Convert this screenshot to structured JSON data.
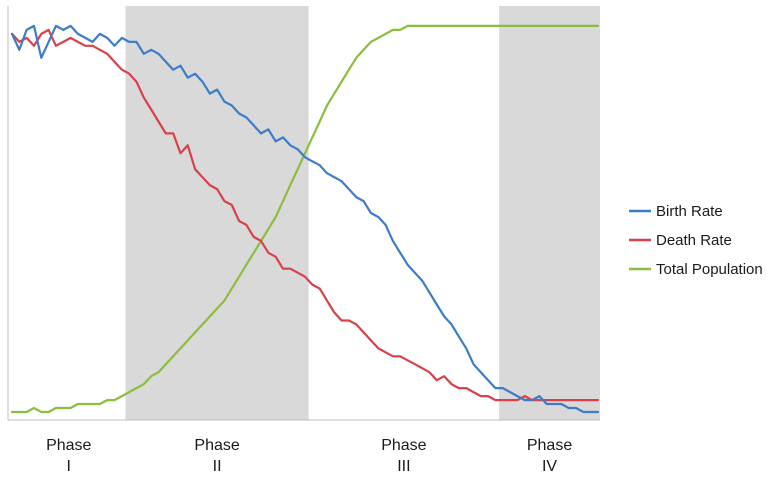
{
  "chart_data": {
    "type": "line",
    "title": "",
    "xlabel": "",
    "ylabel": "",
    "ylim": [
      0,
      100
    ],
    "grid": false,
    "legend_position": "right",
    "x": [
      0,
      1,
      2,
      3,
      4,
      5,
      6,
      7,
      8,
      9,
      10,
      11,
      12,
      13,
      14,
      15,
      16,
      17,
      18,
      19,
      20,
      21,
      22,
      23,
      24,
      25,
      26,
      27,
      28,
      29,
      30,
      31,
      32,
      33,
      34,
      35,
      36,
      37,
      38,
      39,
      40,
      41,
      42,
      43,
      44,
      45,
      46,
      47,
      48,
      49,
      50,
      51,
      52,
      53,
      54,
      55,
      56,
      57,
      58,
      59,
      60,
      61,
      62,
      63,
      64,
      65,
      66,
      67,
      68,
      69,
      70,
      71,
      72,
      73,
      74,
      75,
      76,
      77,
      78,
      79,
      80
    ],
    "phases": [
      {
        "name": "Phase I",
        "line1": "Phase",
        "line2": "I",
        "shaded": false,
        "x_start": 0,
        "x_end": 15.5
      },
      {
        "name": "Phase II",
        "line1": "Phase",
        "line2": "II",
        "shaded": true,
        "x_start": 15.5,
        "x_end": 40.5
      },
      {
        "name": "Phase III",
        "line1": "Phase",
        "line2": "III",
        "shaded": false,
        "x_start": 40.5,
        "x_end": 66.5
      },
      {
        "name": "Phase IV",
        "line1": "Phase",
        "line2": "IV",
        "shaded": true,
        "x_start": 66.5,
        "x_end": 81
      }
    ],
    "series": [
      {
        "name": "Birth Rate",
        "color": "#3d7cc9",
        "values": [
          95,
          91,
          96,
          97,
          89,
          93,
          97,
          96,
          97,
          95,
          94,
          93,
          95,
          94,
          92,
          94,
          93,
          93,
          90,
          91,
          90,
          88,
          86,
          87,
          84,
          85,
          83,
          80,
          81,
          78,
          77,
          75,
          74,
          72,
          70,
          71,
          68,
          69,
          67,
          66,
          64,
          63,
          62,
          60,
          59,
          58,
          56,
          54,
          53,
          50,
          49,
          47,
          43,
          40,
          37,
          35,
          33,
          30,
          27,
          24,
          22,
          19,
          16,
          12,
          10,
          8,
          6,
          6,
          5,
          4,
          3,
          3,
          4,
          2,
          2,
          2,
          1,
          1,
          0,
          0,
          0
        ]
      },
      {
        "name": "Death Rate",
        "color": "#d9414a",
        "values": [
          95,
          93,
          94,
          92,
          95,
          96,
          92,
          93,
          94,
          93,
          92,
          92,
          91,
          90,
          88,
          86,
          85,
          83,
          79,
          76,
          73,
          70,
          70,
          65,
          67,
          61,
          59,
          57,
          56,
          53,
          52,
          48,
          47,
          44,
          43,
          40,
          39,
          36,
          36,
          35,
          34,
          32,
          31,
          28,
          25,
          23,
          23,
          22,
          20,
          18,
          16,
          15,
          14,
          14,
          13,
          12,
          11,
          10,
          8,
          9,
          7,
          6,
          6,
          5,
          4,
          4,
          3,
          3,
          3,
          3,
          4,
          3,
          3,
          3,
          3,
          3,
          3,
          3,
          3,
          3,
          3
        ]
      },
      {
        "name": "Total Population",
        "color": "#8cbd3f",
        "values": [
          0,
          0,
          0,
          1,
          0,
          0,
          1,
          1,
          1,
          2,
          2,
          2,
          2,
          3,
          3,
          4,
          5,
          6,
          7,
          9,
          10,
          12,
          14,
          16,
          18,
          20,
          22,
          24,
          26,
          28,
          31,
          34,
          37,
          40,
          43,
          46,
          49,
          53,
          57,
          61,
          65,
          69,
          73,
          77,
          80,
          83,
          86,
          89,
          91,
          93,
          94,
          95,
          96,
          96,
          97,
          97,
          97,
          97,
          97,
          97,
          97,
          97,
          97,
          97,
          97,
          97,
          97,
          97,
          97,
          97,
          97,
          97,
          97,
          97,
          97,
          97,
          97,
          97,
          97,
          97,
          97
        ]
      }
    ]
  }
}
